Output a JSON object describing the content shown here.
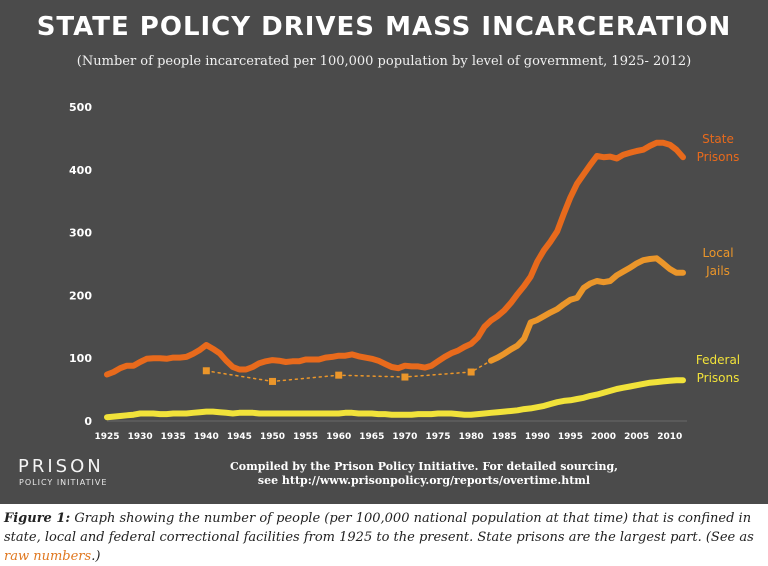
{
  "header": {
    "title": "STATE POLICY DRIVES MASS INCARCERATION",
    "subtitle": "(Number of people incarcerated per 100,000 population by level of government, 1925- 2012)"
  },
  "logo": {
    "line1": "PRISON",
    "line2": "POLICY INITIATIVE"
  },
  "credit": {
    "line1": "Compiled by the Prison Policy Initiative. For detailed sourcing,",
    "line2": "see http://www.prisonpolicy.org/reports/overtime.html"
  },
  "caption": {
    "label": "Figure 1:",
    "text": " Graph showing the number of people (per 100,000 national population at that time) that is confined in state, local and federal correctional facilities from 1925 to the present. State prisons are the largest part. (See as ",
    "link": "raw numbers",
    "end": ".)"
  },
  "colors": {
    "background": "#4b4b4b",
    "state": "#e86a1c",
    "local": "#eb962a",
    "federal": "#f1e23a",
    "axis_text": "#ffffff",
    "link": "#e07820"
  },
  "chart_data": {
    "type": "line",
    "title": "STATE POLICY DRIVES MASS INCARCERATION",
    "xlim": [
      1925,
      2012
    ],
    "ylim": [
      0,
      500
    ],
    "xticks": [
      1925,
      1930,
      1935,
      1940,
      1945,
      1950,
      1955,
      1960,
      1965,
      1970,
      1975,
      1980,
      1985,
      1990,
      1995,
      2000,
      2005,
      2010
    ],
    "yticks": [
      0,
      100,
      200,
      300,
      400,
      500
    ],
    "grid": false,
    "series": [
      {
        "name": "State Prisons",
        "label_lines": [
          "State",
          "Prisons"
        ],
        "color": "#e86a1c",
        "x": [
          1925,
          1926,
          1927,
          1928,
          1929,
          1930,
          1931,
          1932,
          1933,
          1934,
          1935,
          1936,
          1937,
          1938,
          1939,
          1940,
          1941,
          1942,
          1943,
          1944,
          1945,
          1946,
          1947,
          1948,
          1949,
          1950,
          1951,
          1952,
          1953,
          1954,
          1955,
          1956,
          1957,
          1958,
          1959,
          1960,
          1961,
          1962,
          1963,
          1964,
          1965,
          1966,
          1967,
          1968,
          1969,
          1970,
          1971,
          1972,
          1973,
          1974,
          1975,
          1976,
          1977,
          1978,
          1979,
          1980,
          1981,
          1982,
          1983,
          1984,
          1985,
          1986,
          1987,
          1988,
          1989,
          1990,
          1991,
          1992,
          1993,
          1994,
          1995,
          1996,
          1997,
          1998,
          1999,
          2000,
          2001,
          2002,
          2003,
          2004,
          2005,
          2006,
          2007,
          2008,
          2009,
          2010,
          2011,
          2012
        ],
        "y": [
          74,
          78,
          84,
          88,
          88,
          94,
          99,
          100,
          100,
          99,
          101,
          101,
          102,
          107,
          113,
          121,
          115,
          108,
          96,
          86,
          82,
          82,
          86,
          92,
          95,
          97,
          96,
          94,
          95,
          95,
          98,
          98,
          98,
          101,
          102,
          104,
          104,
          106,
          103,
          101,
          99,
          96,
          91,
          86,
          84,
          88,
          87,
          87,
          85,
          88,
          95,
          102,
          108,
          112,
          118,
          123,
          133,
          150,
          160,
          167,
          176,
          188,
          202,
          215,
          230,
          254,
          272,
          286,
          302,
          330,
          356,
          378,
          393,
          408,
          422,
          420,
          421,
          418,
          424,
          427,
          430,
          432,
          438,
          443,
          443,
          440,
          432,
          420
        ]
      },
      {
        "name": "Local Jails",
        "label_lines": [
          "Local",
          "Jails"
        ],
        "color": "#eb962a",
        "x": [
          1983,
          1984,
          1985,
          1986,
          1987,
          1988,
          1989,
          1990,
          1991,
          1992,
          1993,
          1994,
          1995,
          1996,
          1997,
          1998,
          1999,
          2000,
          2001,
          2002,
          2003,
          2004,
          2005,
          2006,
          2007,
          2008,
          2009,
          2010,
          2011,
          2012
        ],
        "y": [
          96,
          101,
          107,
          114,
          120,
          131,
          157,
          161,
          167,
          173,
          178,
          186,
          193,
          196,
          212,
          219,
          223,
          221,
          223,
          232,
          238,
          244,
          251,
          256,
          258,
          259,
          251,
          242,
          236,
          236
        ]
      },
      {
        "name": "Local Jails (sparse counts)",
        "label_lines": [],
        "color": "#eb962a",
        "style": "dotted-markers",
        "x": [
          1940,
          1950,
          1960,
          1970,
          1980,
          1983
        ],
        "y": [
          80,
          63,
          73,
          70,
          78,
          96
        ]
      },
      {
        "name": "Federal Prisons",
        "label_lines": [
          "Federal",
          "Prisons"
        ],
        "color": "#f1e23a",
        "x": [
          1925,
          1926,
          1927,
          1928,
          1929,
          1930,
          1931,
          1932,
          1933,
          1934,
          1935,
          1936,
          1937,
          1938,
          1939,
          1940,
          1941,
          1942,
          1943,
          1944,
          1945,
          1946,
          1947,
          1948,
          1949,
          1950,
          1951,
          1952,
          1953,
          1954,
          1955,
          1956,
          1957,
          1958,
          1959,
          1960,
          1961,
          1962,
          1963,
          1964,
          1965,
          1966,
          1967,
          1968,
          1969,
          1970,
          1971,
          1972,
          1973,
          1974,
          1975,
          1976,
          1977,
          1978,
          1979,
          1980,
          1981,
          1982,
          1983,
          1984,
          1985,
          1986,
          1987,
          1988,
          1989,
          1990,
          1991,
          1992,
          1993,
          1994,
          1995,
          1996,
          1997,
          1998,
          1999,
          2000,
          2001,
          2002,
          2003,
          2004,
          2005,
          2006,
          2007,
          2008,
          2009,
          2010,
          2011,
          2012
        ],
        "y": [
          6,
          7,
          8,
          9,
          10,
          12,
          12,
          12,
          11,
          11,
          12,
          12,
          12,
          13,
          14,
          15,
          15,
          14,
          13,
          12,
          13,
          13,
          13,
          12,
          12,
          12,
          12,
          12,
          12,
          12,
          12,
          12,
          12,
          12,
          12,
          12,
          13,
          13,
          12,
          12,
          12,
          11,
          11,
          10,
          10,
          10,
          10,
          11,
          11,
          11,
          12,
          12,
          12,
          11,
          10,
          10,
          11,
          12,
          13,
          14,
          15,
          16,
          17,
          19,
          20,
          22,
          24,
          27,
          30,
          32,
          33,
          35,
          37,
          40,
          42,
          45,
          48,
          51,
          53,
          55,
          57,
          59,
          61,
          62,
          63,
          64,
          65,
          65
        ]
      }
    ]
  }
}
